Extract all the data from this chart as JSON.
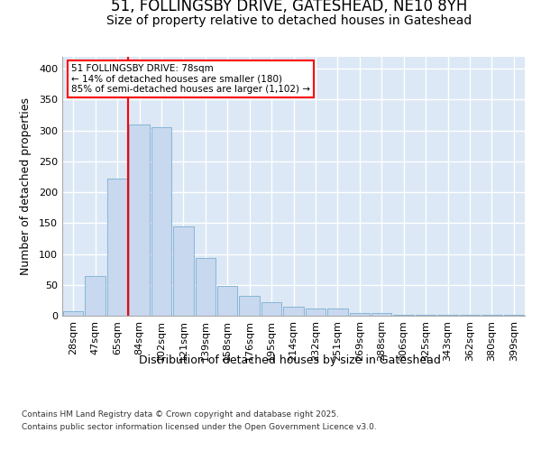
{
  "title": "51, FOLLINGSBY DRIVE, GATESHEAD, NE10 8YH",
  "subtitle": "Size of property relative to detached houses in Gateshead",
  "xlabel": "Distribution of detached houses by size in Gateshead",
  "ylabel": "Number of detached properties",
  "categories": [
    "28sqm",
    "47sqm",
    "65sqm",
    "84sqm",
    "102sqm",
    "121sqm",
    "139sqm",
    "158sqm",
    "176sqm",
    "195sqm",
    "214sqm",
    "232sqm",
    "251sqm",
    "269sqm",
    "288sqm",
    "306sqm",
    "325sqm",
    "343sqm",
    "362sqm",
    "380sqm",
    "399sqm"
  ],
  "bar_heights": [
    8,
    65,
    222,
    310,
    305,
    145,
    93,
    48,
    32,
    22,
    15,
    12,
    11,
    5,
    5,
    2,
    1,
    1,
    1,
    1,
    1
  ],
  "bar_color": "#c8d8ee",
  "bar_edge_color": "#7bafd4",
  "vline_color": "red",
  "annotation_title": "51 FOLLINGSBY DRIVE: 78sqm",
  "annotation_line1": "← 14% of detached houses are smaller (180)",
  "annotation_line2": "85% of semi-detached houses are larger (1,102) →",
  "title_fontsize": 12,
  "subtitle_fontsize": 10,
  "xlabel_fontsize": 9,
  "ylabel_fontsize": 9,
  "tick_fontsize": 8,
  "footer_line1": "Contains HM Land Registry data © Crown copyright and database right 2025.",
  "footer_line2": "Contains public sector information licensed under the Open Government Licence v3.0.",
  "background_color": "#ffffff",
  "plot_background": "#dce8f5",
  "grid_color": "#ffffff",
  "ylim": [
    0,
    420
  ],
  "vline_position": 78.5
}
